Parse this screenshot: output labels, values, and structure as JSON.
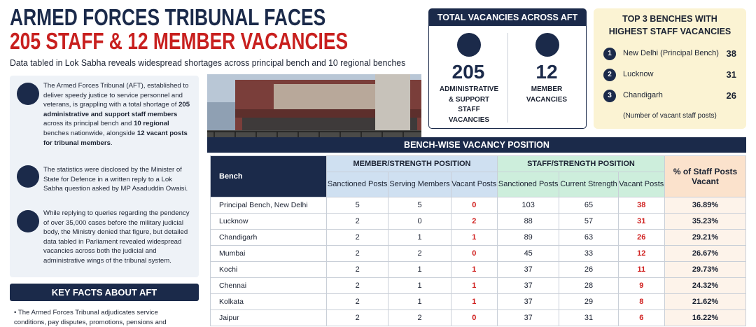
{
  "header": {
    "title_line1": "ARMED FORCES TRIBUNAL FACES",
    "title_line2": "205 STAFF & 12 MEMBER VACANCIES",
    "subtitle": "Data tabled in Lok Sabha reveals widespread shortages across principal bench and 10 regional benches"
  },
  "summary": {
    "paragraphs": [
      {
        "runs": [
          {
            "text": "The Armed Forces Tribunal (AFT), established to deliver speedy justice to service personnel and veterans, is grappling with a total shortage of ",
            "bold": false
          },
          {
            "text": "205 administrative and support staff members",
            "bold": true
          },
          {
            "text": " across its principal bench and ",
            "bold": false
          },
          {
            "text": "10 regional",
            "bold": true
          },
          {
            "text": " benches nationwide, alongside ",
            "bold": false
          },
          {
            "text": "12 vacant posts for tribunal members",
            "bold": true
          },
          {
            "text": ".",
            "bold": false
          }
        ]
      },
      {
        "runs": [
          {
            "text": "The statistics were disclosed by the Minister of State for Defence in a written reply to a Lok Sabha question asked by MP Asaduddin Owaisi.",
            "bold": false
          }
        ]
      },
      {
        "runs": [
          {
            "text": "While replying to queries regarding the pendency of over 35,000 cases before the military judicial body, the Ministry denied that figure, but detailed data tabled in Parliament revealed widespread vacancies across both the judicial and administrative wings of the tribunal system.",
            "bold": false
          }
        ]
      }
    ]
  },
  "key_facts": {
    "title": "KEY FACTS ABOUT AFT",
    "items": [
      "The Armed Forces Tribunal adjudicates service conditions, pay disputes, promotions, pensions and"
    ]
  },
  "total": {
    "title": "TOTAL VACANCIES ACROSS AFT",
    "staff_value": "205",
    "staff_label": "ADMINISTRATIVE & SUPPORT STAFF VACANCIES",
    "member_value": "12",
    "member_label": "MEMBER VACANCIES"
  },
  "top3": {
    "title": "TOP 3 BENCHES WITH HIGHEST STAFF VACANCIES",
    "items": [
      {
        "rank": 1,
        "name": "New Delhi (Principal Bench)",
        "value": 38
      },
      {
        "rank": 2,
        "name": "Lucknow",
        "value": 31
      },
      {
        "rank": 3,
        "name": "Chandigarh",
        "value": 26
      }
    ],
    "note": "(Number of vacant staff posts)"
  },
  "table": {
    "title": "BENCH-WISE VACANCY POSITION",
    "bench_header": "Bench",
    "member_group": "MEMBER/STRENGTH POSITION",
    "staff_group": "STAFF/STRENGTH POSITION",
    "pct_header": "% of Staff Posts Vacant",
    "sub_headers": [
      "Sanctioned Posts",
      "Serving Members",
      "Vacant Posts",
      "Sanctioned Posts",
      "Current Strength",
      "Vacant Posts"
    ],
    "rows": [
      [
        "Principal Bench, New Delhi",
        5,
        5,
        0,
        103,
        65,
        38,
        "36.89%"
      ],
      [
        "Lucknow",
        2,
        0,
        2,
        88,
        57,
        31,
        "35.23%"
      ],
      [
        "Chandigarh",
        2,
        1,
        1,
        89,
        63,
        26,
        "29.21%"
      ],
      [
        "Mumbai",
        2,
        2,
        0,
        45,
        33,
        12,
        "26.67%"
      ],
      [
        "Kochi",
        2,
        1,
        1,
        37,
        26,
        11,
        "29.73%"
      ],
      [
        "Chennai",
        2,
        1,
        1,
        37,
        28,
        9,
        "24.32%"
      ],
      [
        "Kolkata",
        2,
        1,
        1,
        37,
        29,
        8,
        "21.62%"
      ],
      [
        "Jaipur",
        2,
        2,
        0,
        37,
        31,
        6,
        "16.22%"
      ]
    ]
  }
}
